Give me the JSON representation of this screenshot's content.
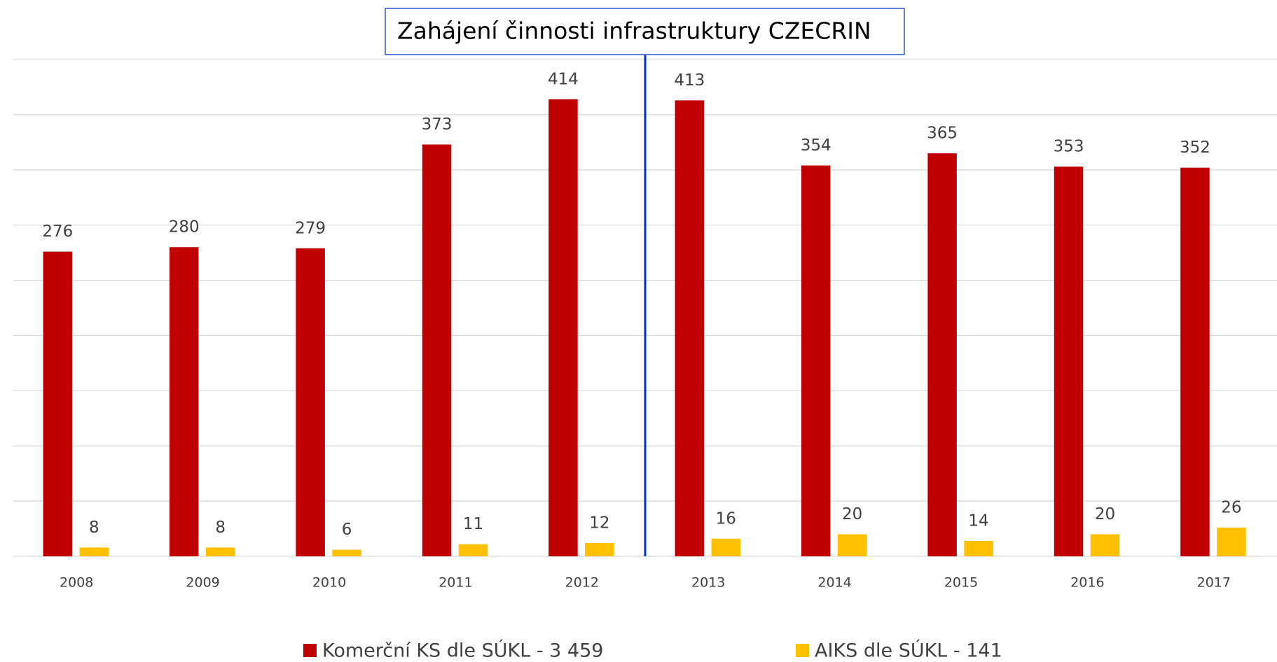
{
  "chart_data": {
    "type": "bar",
    "annotation": "Zahájení činnosti infrastruktury CZECRIN",
    "categories": [
      "2008",
      "2009",
      "2010",
      "2011",
      "2012",
      "2013",
      "2014",
      "2015",
      "2016",
      "2017"
    ],
    "series": [
      {
        "name": "Komerční KS dle SÚKL - 3 459",
        "color": "#c00000",
        "values": [
          276,
          280,
          279,
          373,
          414,
          413,
          354,
          365,
          353,
          352
        ]
      },
      {
        "name": "AIKS dle SÚKL - 141",
        "color": "#ffc000",
        "values": [
          8,
          8,
          6,
          11,
          12,
          16,
          20,
          14,
          20,
          26
        ]
      }
    ],
    "ylim": [
      0,
      450
    ],
    "yticks": [
      0,
      50,
      100,
      150,
      200,
      250,
      300,
      350,
      400,
      450
    ],
    "grid": true,
    "legend": "bottom"
  }
}
